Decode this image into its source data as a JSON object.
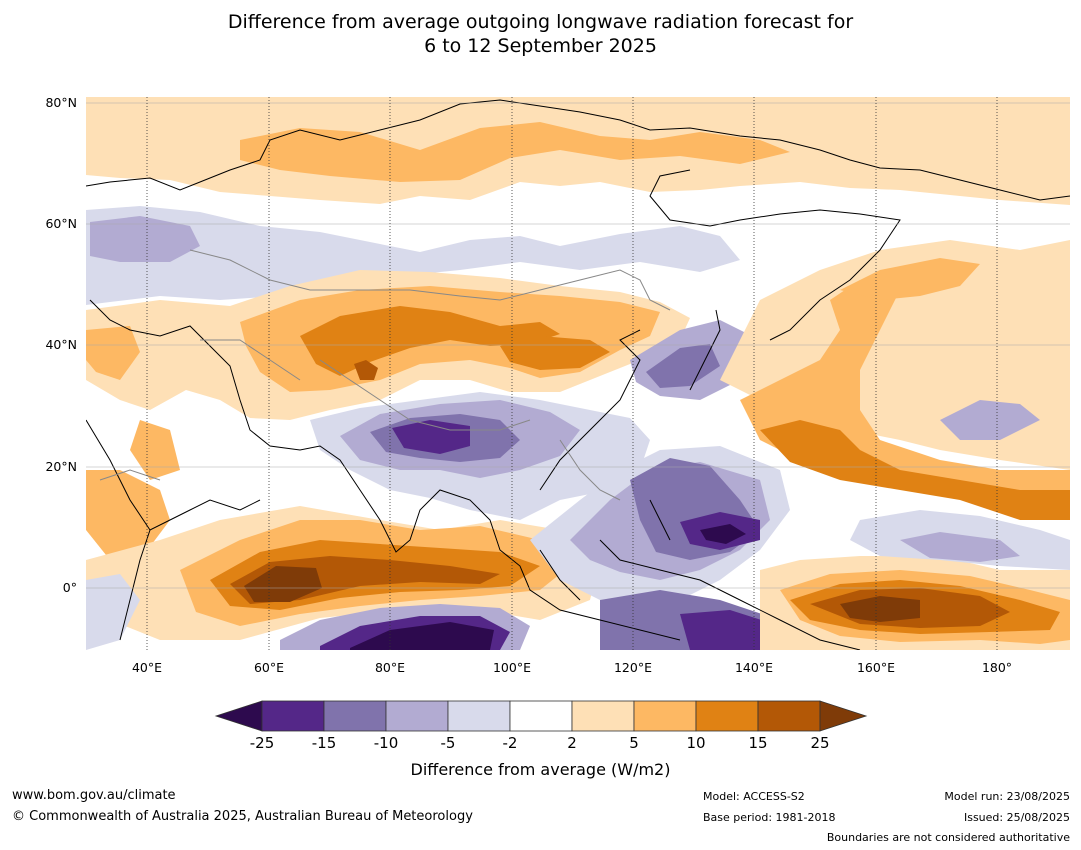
{
  "title_line1": "Difference from average outgoing longwave radiation forecast for",
  "title_line2": "6 to 12 September 2025",
  "axes": {
    "lat_labels": [
      "80°N",
      "60°N",
      "40°N",
      "20°N",
      "0°"
    ],
    "lon_labels": [
      "40°E",
      "60°E",
      "80°E",
      "100°E",
      "120°E",
      "140°E",
      "160°E",
      "180°"
    ]
  },
  "colorbar": {
    "ticks": [
      "-25",
      "-15",
      "-10",
      "-5",
      "-2",
      "2",
      "5",
      "10",
      "15",
      "25"
    ],
    "colors": [
      "#2d0a4e",
      "#542788",
      "#8073ac",
      "#b2abd2",
      "#d8daeb",
      "#ffffff",
      "#fee0b6",
      "#fdb863",
      "#e08214",
      "#b35806",
      "#7f3b08"
    ],
    "label": "Difference from average (W/m2)"
  },
  "footer": {
    "url": "www.bom.gov.au/climate",
    "copyright": "© Commonwealth of Australia 2025, Australian Bureau of Meteorology",
    "model": "Model: ACCESS-S2",
    "base_period": "Base period: 1981-2018",
    "model_run": "Model run: 23/08/2025",
    "issued": "Issued: 25/08/2025",
    "disclaimer": "Boundaries are not considered authoritative"
  }
}
